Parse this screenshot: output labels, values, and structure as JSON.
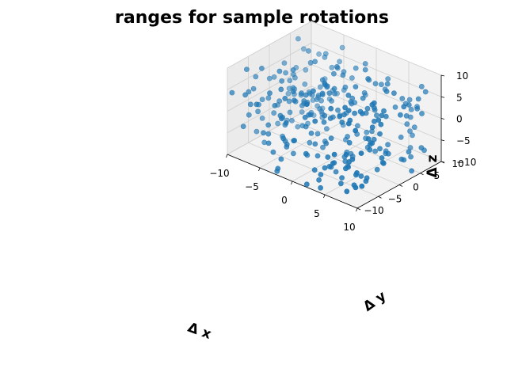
{
  "chart_data": {
    "type": "scatter",
    "title": "ranges for sample rotations",
    "xlabel": "Δ x",
    "ylabel": "Δ y",
    "zlabel": "Δ z",
    "xlim": [
      -10,
      10
    ],
    "ylim": [
      -10,
      10
    ],
    "zlim": [
      -10,
      10
    ],
    "xticks": [
      -10,
      -5,
      0,
      5,
      10
    ],
    "yticks": [
      -10,
      -5,
      0,
      5,
      10
    ],
    "zticks": [
      -10,
      -5,
      0,
      5,
      10
    ],
    "grid": true,
    "point_color": "#1f77b4",
    "n_points": 300
  }
}
